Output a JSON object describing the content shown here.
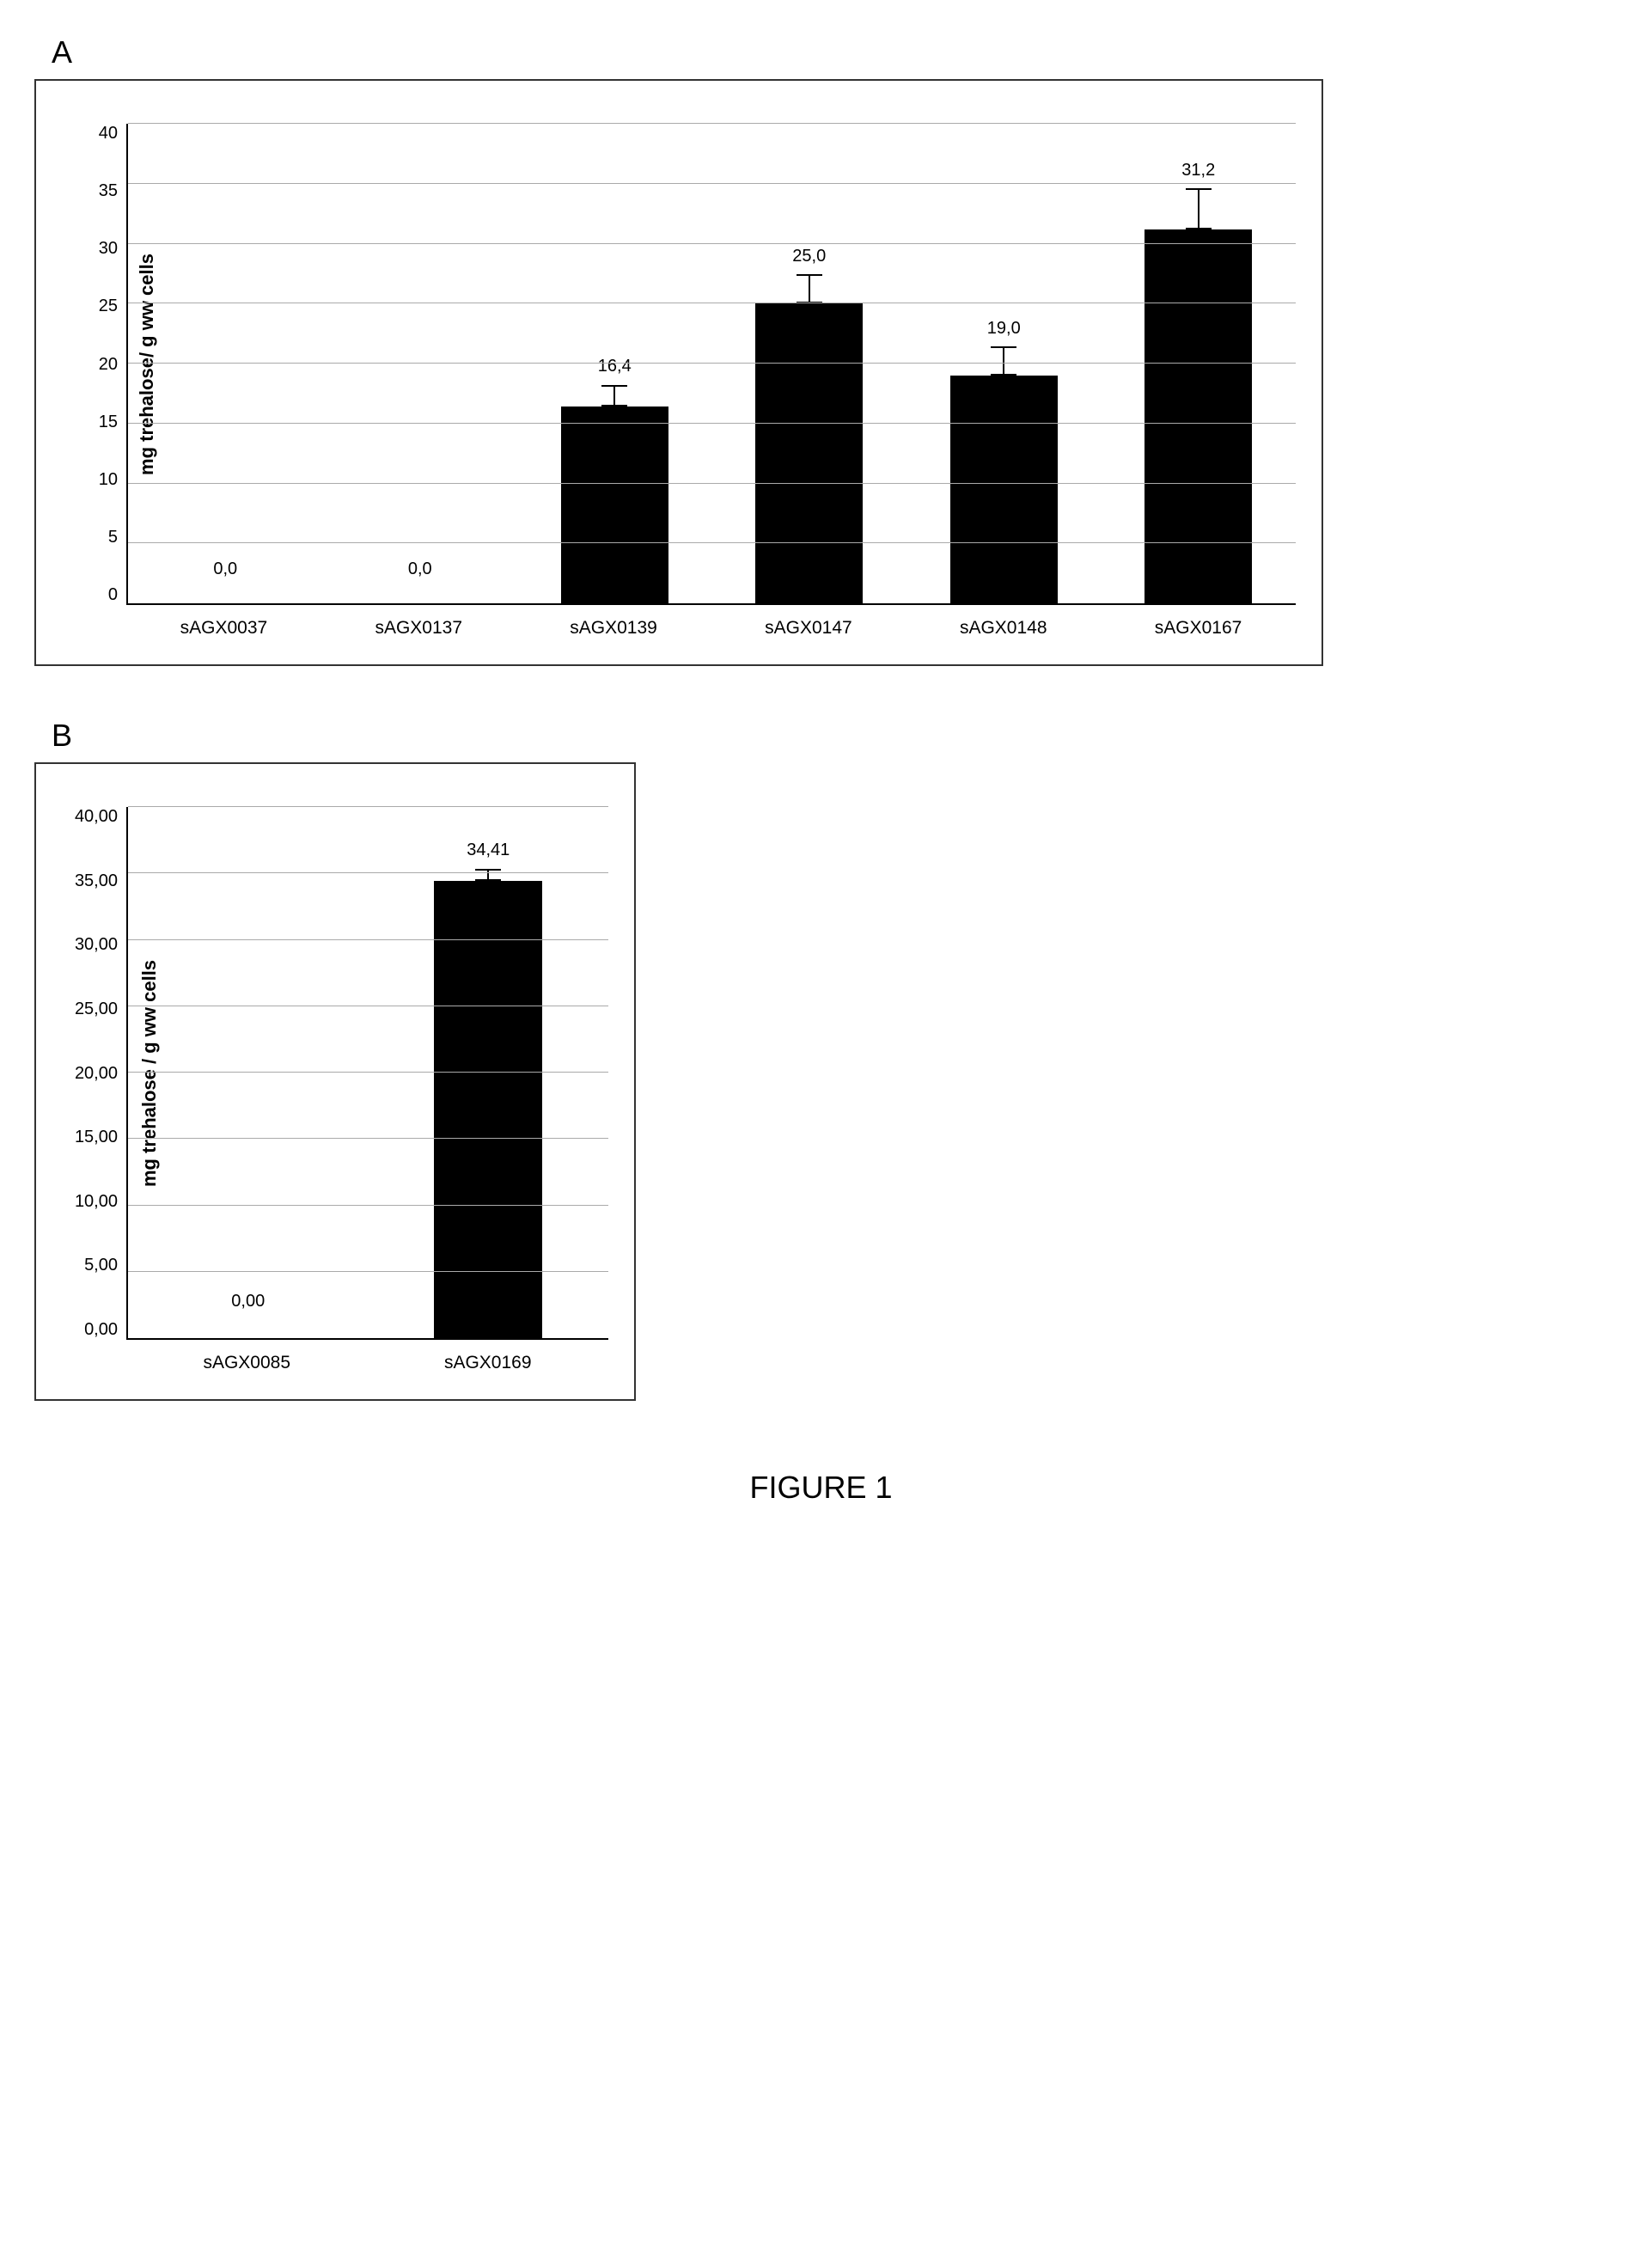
{
  "panel_a": {
    "label": "A",
    "chart": {
      "type": "bar",
      "ylabel": "mg trehalose/ g ww cells",
      "ylabel_fontsize": 22,
      "ylim": [
        0,
        40
      ],
      "ytick_step": 5,
      "yticks": [
        "0",
        "5",
        "10",
        "15",
        "20",
        "25",
        "30",
        "35",
        "40"
      ],
      "background_color": "#ffffff",
      "grid_color": "#aaaaaa",
      "bar_color": "#000000",
      "bar_width": 0.55,
      "label_fontsize": 20,
      "xlabel_fontsize": 21,
      "categories": [
        "sAGX0037",
        "sAGX0137",
        "sAGX0139",
        "sAGX0147",
        "sAGX0148",
        "sAGX0167"
      ],
      "values": [
        0.0,
        0.0,
        16.4,
        25.0,
        19.0,
        31.2
      ],
      "value_labels": [
        "0,0",
        "0,0",
        "16,4",
        "25,0",
        "19,0",
        "31,2"
      ],
      "errors": [
        0,
        0,
        1.7,
        2.3,
        2.3,
        3.3
      ]
    }
  },
  "panel_b": {
    "label": "B",
    "chart": {
      "type": "bar",
      "ylabel": "mg trehalose / g ww cells",
      "ylabel_fontsize": 22,
      "ylim": [
        0,
        40
      ],
      "ytick_step": 5,
      "yticks": [
        "0,00",
        "5,00",
        "10,00",
        "15,00",
        "20,00",
        "25,00",
        "30,00",
        "35,00",
        "40,00"
      ],
      "background_color": "#ffffff",
      "grid_color": "#aaaaaa",
      "bar_color": "#000000",
      "bar_width": 0.45,
      "label_fontsize": 20,
      "xlabel_fontsize": 21,
      "categories": [
        "sAGX0085",
        "sAGX0169"
      ],
      "values": [
        0.0,
        34.41
      ],
      "value_labels": [
        "0,00",
        "34,41"
      ],
      "errors": [
        0,
        0.8
      ]
    }
  },
  "figure_title": "FIGURE 1"
}
